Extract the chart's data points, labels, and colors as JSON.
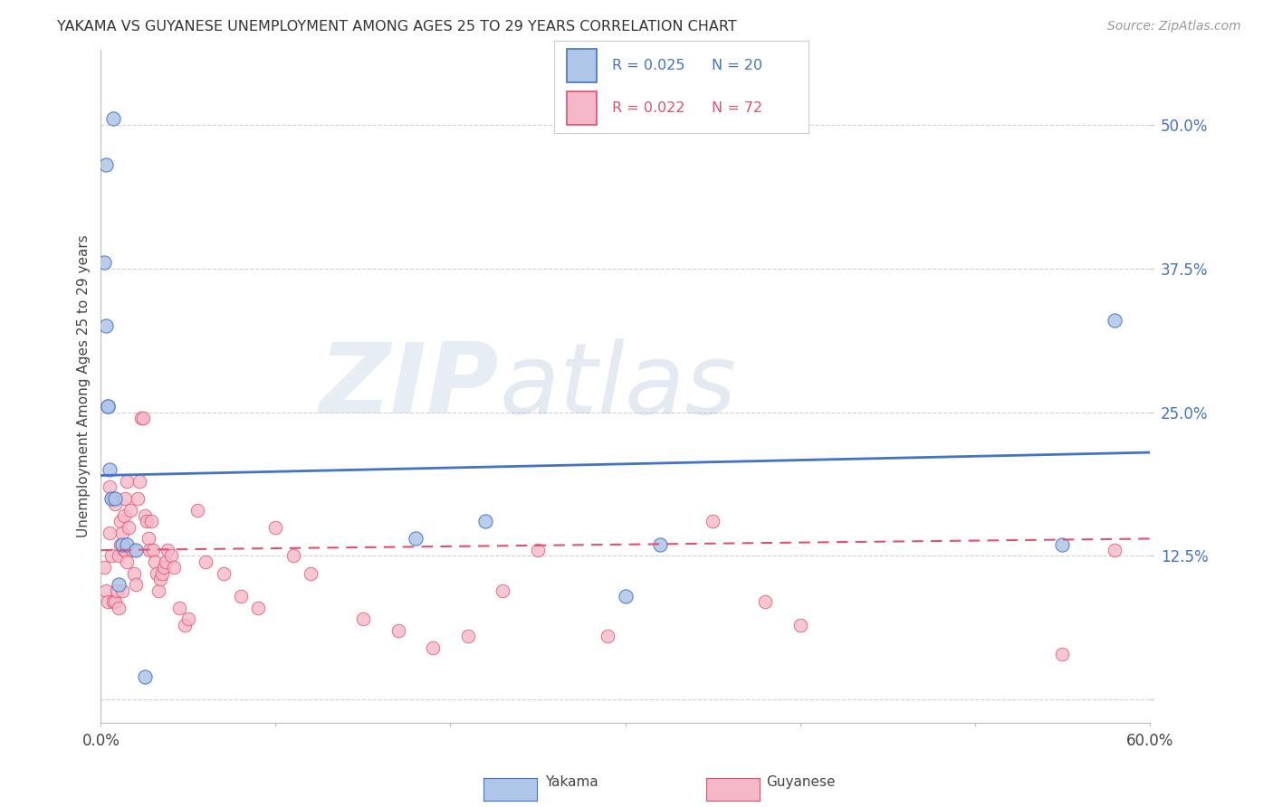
{
  "title": "YAKAMA VS GUYANESE UNEMPLOYMENT AMONG AGES 25 TO 29 YEARS CORRELATION CHART",
  "source": "Source: ZipAtlas.com",
  "ylabel": "Unemployment Among Ages 25 to 29 years",
  "xlim": [
    0.0,
    0.6
  ],
  "ylim": [
    -0.02,
    0.565
  ],
  "yticks": [
    0.0,
    0.125,
    0.25,
    0.375,
    0.5
  ],
  "ytick_labels": [
    "",
    "12.5%",
    "25.0%",
    "37.5%",
    "50.0%"
  ],
  "xticks": [
    0.0,
    0.1,
    0.2,
    0.3,
    0.4,
    0.5,
    0.6
  ],
  "xtick_labels": [
    "0.0%",
    "",
    "",
    "",
    "",
    "",
    "60.0%"
  ],
  "background_color": "#ffffff",
  "grid_color": "#cccccc",
  "yakama_color": "#aec6e8",
  "guyanese_color": "#f5b8c8",
  "yakama_line_color": "#4472c4",
  "guyanese_line_color": "#e05070",
  "yakama_x": [
    0.003,
    0.007,
    0.002,
    0.003,
    0.004,
    0.004,
    0.005,
    0.006,
    0.008,
    0.01,
    0.012,
    0.015,
    0.02,
    0.025,
    0.18,
    0.22,
    0.3,
    0.32,
    0.55,
    0.58
  ],
  "yakama_y": [
    0.465,
    0.505,
    0.38,
    0.325,
    0.255,
    0.255,
    0.2,
    0.175,
    0.175,
    0.1,
    0.135,
    0.135,
    0.13,
    0.02,
    0.14,
    0.155,
    0.09,
    0.135,
    0.135,
    0.33
  ],
  "guyanese_x": [
    0.002,
    0.003,
    0.004,
    0.005,
    0.005,
    0.006,
    0.006,
    0.007,
    0.007,
    0.008,
    0.008,
    0.009,
    0.01,
    0.01,
    0.011,
    0.011,
    0.012,
    0.012,
    0.013,
    0.013,
    0.014,
    0.014,
    0.015,
    0.015,
    0.016,
    0.017,
    0.018,
    0.019,
    0.02,
    0.021,
    0.022,
    0.023,
    0.024,
    0.025,
    0.026,
    0.027,
    0.028,
    0.029,
    0.03,
    0.031,
    0.032,
    0.033,
    0.034,
    0.035,
    0.036,
    0.037,
    0.038,
    0.04,
    0.042,
    0.045,
    0.048,
    0.05,
    0.055,
    0.06,
    0.07,
    0.08,
    0.09,
    0.1,
    0.11,
    0.12,
    0.15,
    0.17,
    0.19,
    0.21,
    0.23,
    0.25,
    0.29,
    0.35,
    0.38,
    0.4,
    0.55,
    0.58
  ],
  "guyanese_y": [
    0.115,
    0.095,
    0.085,
    0.145,
    0.185,
    0.125,
    0.175,
    0.175,
    0.085,
    0.17,
    0.085,
    0.095,
    0.08,
    0.125,
    0.135,
    0.155,
    0.145,
    0.095,
    0.13,
    0.16,
    0.13,
    0.175,
    0.12,
    0.19,
    0.15,
    0.165,
    0.13,
    0.11,
    0.1,
    0.175,
    0.19,
    0.245,
    0.245,
    0.16,
    0.155,
    0.14,
    0.13,
    0.155,
    0.13,
    0.12,
    0.11,
    0.095,
    0.105,
    0.11,
    0.115,
    0.12,
    0.13,
    0.125,
    0.115,
    0.08,
    0.065,
    0.07,
    0.165,
    0.12,
    0.11,
    0.09,
    0.08,
    0.15,
    0.125,
    0.11,
    0.07,
    0.06,
    0.045,
    0.055,
    0.095,
    0.13,
    0.055,
    0.155,
    0.085,
    0.065,
    0.04,
    0.13
  ],
  "yakama_trend": [
    0.0,
    0.6
  ],
  "yakama_trend_y": [
    0.195,
    0.215
  ],
  "guyanese_trend": [
    0.0,
    0.6
  ],
  "guyanese_trend_y": [
    0.13,
    0.14
  ]
}
